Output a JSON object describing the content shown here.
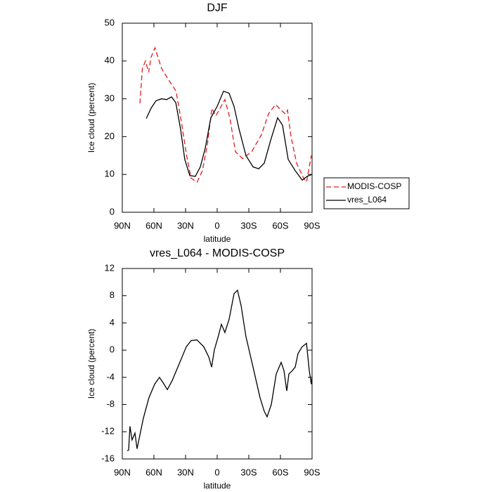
{
  "chart_data": [
    {
      "type": "line",
      "title": "DJF",
      "xlabel": "latitude",
      "ylabel": "Ice cloud (percent)",
      "xlim": [
        90,
        -90
      ],
      "ylim": [
        0,
        50
      ],
      "xticks": [
        {
          "value": 90,
          "label": "90N"
        },
        {
          "value": 60,
          "label": "60N"
        },
        {
          "value": 30,
          "label": "30N"
        },
        0,
        {
          "value": -30,
          "label": "30S"
        },
        {
          "value": -60,
          "label": "60S"
        },
        {
          "value": -90,
          "label": "90S"
        }
      ],
      "yticks": [
        0,
        10,
        20,
        30,
        40,
        50
      ],
      "legend": "right",
      "series": [
        {
          "name": "MODIS-COSP",
          "color": "#e41a1c",
          "line_style": "dashed",
          "x": [
            73.3,
            71,
            68,
            65,
            62.7,
            59,
            52.7,
            46,
            39,
            34,
            29,
            24.7,
            19,
            14,
            9.3,
            5,
            1.3,
            -2.7,
            -7.3,
            -12,
            -17.3,
            -24,
            -32.7,
            -42,
            -48.7,
            -55.3,
            -60.7,
            -64.7,
            -66.7,
            -70,
            -75.3,
            -82,
            -84.7,
            -87.3,
            -89.3
          ],
          "values": [
            28.8,
            38,
            40,
            37,
            41,
            43.5,
            38,
            35,
            32,
            24,
            15,
            9,
            8,
            11,
            18,
            27.5,
            25.5,
            27.5,
            29.8,
            25,
            16,
            14.2,
            16,
            20.5,
            26,
            28.5,
            27,
            26,
            27,
            20,
            13,
            9,
            8,
            12,
            15
          ]
        },
        {
          "name": "vres_L064",
          "color": "#000000",
          "line_style": "solid",
          "x": [
            67.3,
            62.7,
            58,
            52.7,
            48,
            43.3,
            39.3,
            34.7,
            30.7,
            26,
            20.7,
            16,
            11.3,
            6,
            0,
            -6,
            -11.3,
            -16,
            -20.7,
            -27.3,
            -34,
            -39.3,
            -44.7,
            -50.7,
            -57.3,
            -62,
            -67.3,
            -74,
            -80.7,
            -85.3,
            -90
          ],
          "values": [
            24.8,
            27.5,
            29.5,
            30,
            29.8,
            30.5,
            29,
            22,
            14,
            9.7,
            9.5,
            12,
            17,
            25,
            28,
            32,
            31.5,
            28,
            22,
            15,
            12,
            11.5,
            13,
            19,
            25,
            23,
            14,
            11,
            8.5,
            9.5,
            10
          ]
        }
      ]
    },
    {
      "type": "line",
      "title": "vres_L064 - MODIS-COSP",
      "xlabel": "latitude",
      "ylabel": "Ice cloud (percent)",
      "xlim": [
        90,
        -90
      ],
      "ylim": [
        -16,
        12
      ],
      "xticks": [
        {
          "value": 90,
          "label": "90N"
        },
        {
          "value": 60,
          "label": "60N"
        },
        {
          "value": 30,
          "label": "30N"
        },
        0,
        {
          "value": -30,
          "label": "30S"
        },
        {
          "value": -60,
          "label": "60S"
        },
        {
          "value": -90,
          "label": "90S"
        }
      ],
      "yticks": [
        -16,
        -12,
        -8,
        -4,
        0,
        4,
        8,
        12
      ],
      "series": [
        {
          "color": "#000000",
          "line_style": "solid",
          "x": [
            85.3,
            84,
            82.7,
            80.7,
            78,
            76,
            74,
            70,
            64.7,
            59.3,
            54.7,
            51.3,
            47.3,
            42.7,
            36,
            29.3,
            24.7,
            19.3,
            12.7,
            8,
            5.3,
            2.7,
            -1.3,
            -4,
            -7.3,
            -11.3,
            -16,
            -19.3,
            -22.7,
            -27.3,
            -34,
            -40.7,
            -44.7,
            -47.3,
            -51.3,
            -56,
            -60.7,
            -63.3,
            -66,
            -68,
            -71.3,
            -74,
            -76.7,
            -80.7,
            -84.7,
            -87.3,
            -89.3,
            -90
          ],
          "values": [
            -14.8,
            -14.7,
            -11.2,
            -13.2,
            -12.2,
            -14.5,
            -13,
            -10,
            -7,
            -5,
            -4,
            -4.8,
            -5.8,
            -4.5,
            -2,
            0.5,
            1.4,
            1.5,
            0.5,
            -1,
            -2.5,
            0,
            2.2,
            3.8,
            2.6,
            4.5,
            8.3,
            8.8,
            6.5,
            2,
            -2.5,
            -7,
            -9,
            -9.8,
            -8,
            -3.5,
            -1.8,
            -3,
            -6,
            -3.5,
            -3,
            -2.5,
            -0.5,
            0.5,
            1,
            -3,
            -5,
            -4
          ]
        }
      ]
    }
  ]
}
